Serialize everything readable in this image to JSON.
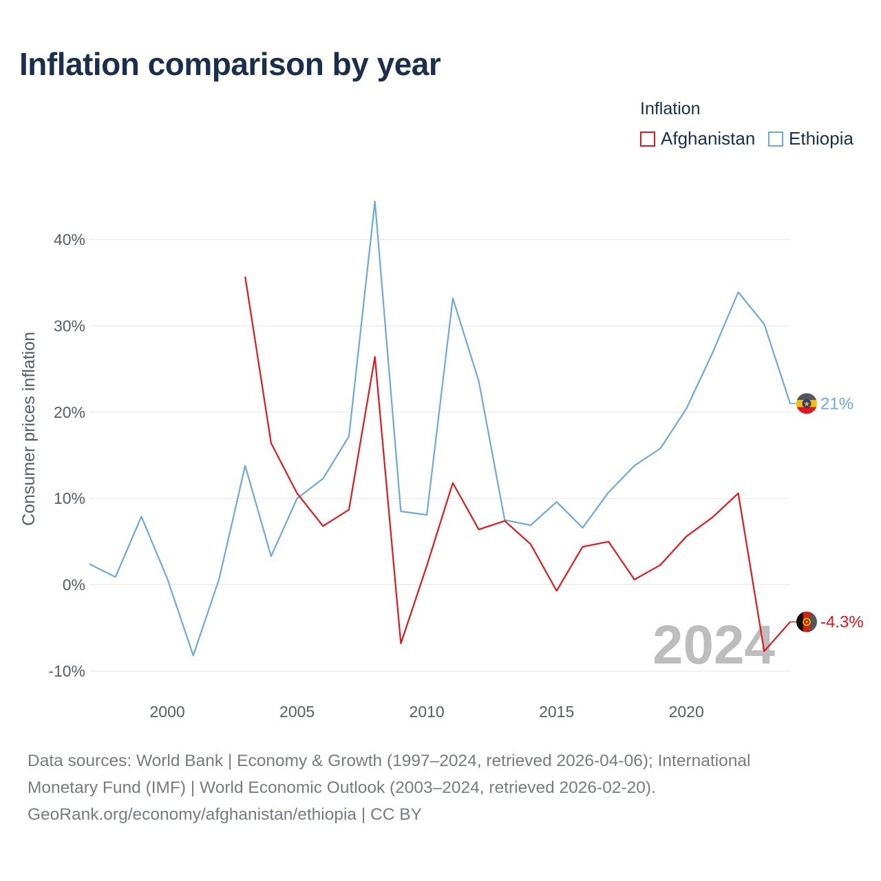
{
  "title": "Inflation comparison by year",
  "legend": {
    "title": "Inflation",
    "items": [
      {
        "label": "Afghanistan",
        "color": "#e3161b"
      },
      {
        "label": "Ethiopia",
        "color": "#6aa9e0"
      }
    ]
  },
  "chart_data": {
    "type": "line",
    "title": "Inflation comparison by year",
    "xlabel": "",
    "ylabel": "Consumer prices inflation",
    "xlim": [
      1997,
      2024
    ],
    "ylim": [
      -10,
      40
    ],
    "x_ticks": [
      2000,
      2005,
      2010,
      2015,
      2020
    ],
    "y_ticks": [
      40,
      30,
      20,
      10,
      0,
      -10
    ],
    "y_tick_labels": [
      "40%",
      "30%",
      "20%",
      "10%",
      "0%",
      "-10%"
    ],
    "grid": true,
    "legend_position": "top-right",
    "year_label": "2024",
    "series": [
      {
        "name": "Afghanistan",
        "color": "#e3161b",
        "x": [
          2003,
          2004,
          2005,
          2006,
          2007,
          2008,
          2009,
          2010,
          2011,
          2012,
          2013,
          2014,
          2015,
          2016,
          2017,
          2018,
          2019,
          2020,
          2021,
          2022,
          2023,
          2024
        ],
        "values": [
          35.7,
          16.4,
          10.6,
          6.8,
          8.7,
          26.4,
          -6.8,
          2.2,
          11.8,
          6.4,
          7.4,
          4.7,
          -0.7,
          4.4,
          5.0,
          0.6,
          2.3,
          5.6,
          7.8,
          10.6,
          -7.7,
          -4.3
        ],
        "end_label": "-4.3%"
      },
      {
        "name": "Ethiopia",
        "color": "#6aa9e0",
        "x": [
          1997,
          1998,
          1999,
          2000,
          2001,
          2002,
          2003,
          2004,
          2005,
          2006,
          2007,
          2008,
          2009,
          2010,
          2011,
          2012,
          2013,
          2014,
          2015,
          2016,
          2017,
          2018,
          2019,
          2020,
          2021,
          2022,
          2023,
          2024
        ],
        "values": [
          2.4,
          0.9,
          7.9,
          0.7,
          -8.2,
          0.7,
          13.8,
          3.3,
          10.0,
          12.3,
          17.2,
          44.4,
          8.5,
          8.1,
          33.2,
          23.6,
          7.5,
          6.9,
          9.6,
          6.6,
          10.7,
          13.8,
          15.8,
          20.4,
          26.8,
          33.9,
          30.2,
          21.0
        ],
        "end_label": "21%"
      }
    ]
  },
  "footer": {
    "line1": "Data sources: World Bank | Economy & Growth (1997–2024, retrieved 2026-04-06); International",
    "line2": "Monetary Fund (IMF) | World Economic Outlook (2003–2024, retrieved 2026-02-20).",
    "line3": "GeoRank.org/economy/afghanistan/ethiopia | CC BY"
  }
}
